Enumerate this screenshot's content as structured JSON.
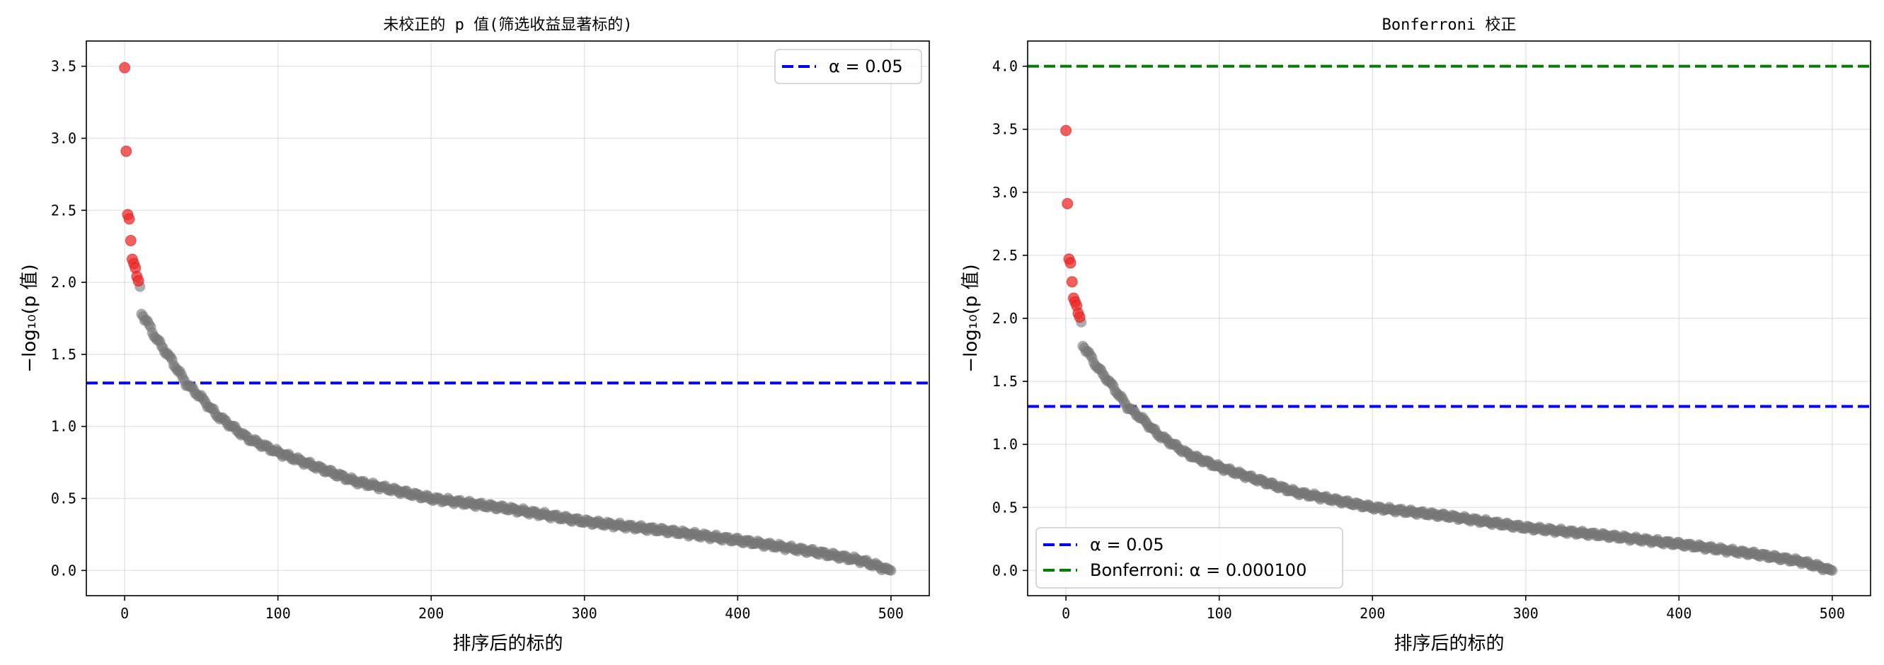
{
  "chart_data": [
    {
      "type": "scatter",
      "title": "未校正的 p 值(筛选收益显著标的)",
      "xlabel": "排序后的标的",
      "ylabel": "−log₁₀(p 值)",
      "xlim": [
        -25,
        525
      ],
      "ylim": [
        -0.175,
        3.675
      ],
      "xticks": [
        "0",
        "100",
        "200",
        "300",
        "400",
        "500"
      ],
      "yticks": [
        "0.0",
        "0.5",
        "1.0",
        "1.5",
        "2.0",
        "2.5",
        "3.0",
        "3.5"
      ],
      "grid": true,
      "legend_position": "top-right",
      "significant_color": "#ee2a2a",
      "nonsignificant_color": "#777777",
      "significant_points": [
        [
          0,
          3.49
        ],
        [
          1,
          2.91
        ],
        [
          2,
          2.47
        ],
        [
          3,
          2.44
        ],
        [
          4,
          2.29
        ],
        [
          5,
          2.16
        ],
        [
          6,
          2.13
        ],
        [
          7,
          2.1
        ],
        [
          8,
          2.04
        ],
        [
          9,
          2.01
        ]
      ],
      "curve_anchors": [
        [
          10,
          1.97
        ],
        [
          11,
          1.78
        ],
        [
          15,
          1.72
        ],
        [
          20,
          1.62
        ],
        [
          30,
          1.47
        ],
        [
          40,
          1.3
        ],
        [
          50,
          1.2
        ],
        [
          60,
          1.08
        ],
        [
          80,
          0.92
        ],
        [
          100,
          0.82
        ],
        [
          150,
          0.62
        ],
        [
          200,
          0.5
        ],
        [
          250,
          0.43
        ],
        [
          300,
          0.34
        ],
        [
          350,
          0.28
        ],
        [
          400,
          0.21
        ],
        [
          450,
          0.13
        ],
        [
          480,
          0.07
        ],
        [
          500,
          0.0
        ]
      ],
      "reference_lines": [
        {
          "label": "α = 0.05",
          "value": 1.301,
          "color": "#0000ff"
        }
      ]
    },
    {
      "type": "scatter",
      "title": "Bonferroni 校正",
      "xlabel": "排序后的标的",
      "ylabel": "−log₁₀(p 值)",
      "xlim": [
        -25,
        525
      ],
      "ylim": [
        -0.2,
        4.2
      ],
      "xticks": [
        "0",
        "100",
        "200",
        "300",
        "400",
        "500"
      ],
      "yticks": [
        "0.0",
        "0.5",
        "1.0",
        "1.5",
        "2.0",
        "2.5",
        "3.0",
        "3.5",
        "4.0"
      ],
      "grid": true,
      "legend_position": "bottom-left",
      "significant_color": "#ee2a2a",
      "nonsignificant_color": "#777777",
      "significant_points": [
        [
          0,
          3.49
        ],
        [
          1,
          2.91
        ],
        [
          2,
          2.47
        ],
        [
          3,
          2.44
        ],
        [
          4,
          2.29
        ],
        [
          5,
          2.16
        ],
        [
          6,
          2.13
        ],
        [
          7,
          2.1
        ],
        [
          8,
          2.04
        ],
        [
          9,
          2.01
        ]
      ],
      "curve_anchors": [
        [
          10,
          1.97
        ],
        [
          11,
          1.78
        ],
        [
          15,
          1.72
        ],
        [
          20,
          1.62
        ],
        [
          30,
          1.47
        ],
        [
          40,
          1.3
        ],
        [
          50,
          1.2
        ],
        [
          60,
          1.08
        ],
        [
          80,
          0.92
        ],
        [
          100,
          0.82
        ],
        [
          150,
          0.62
        ],
        [
          200,
          0.5
        ],
        [
          250,
          0.43
        ],
        [
          300,
          0.34
        ],
        [
          350,
          0.28
        ],
        [
          400,
          0.21
        ],
        [
          450,
          0.13
        ],
        [
          480,
          0.07
        ],
        [
          500,
          0.0
        ]
      ],
      "reference_lines": [
        {
          "label": "α = 0.05",
          "value": 1.301,
          "color": "#0000ff"
        },
        {
          "label": "Bonferroni: α = 0.000100",
          "value": 4.0,
          "color": "#008000"
        }
      ]
    }
  ]
}
